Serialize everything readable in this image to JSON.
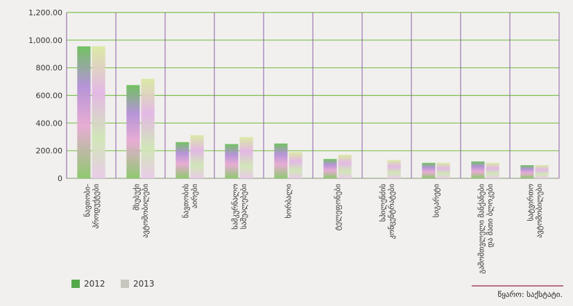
{
  "chart_data": {
    "type": "bar",
    "title": "",
    "xlabel": "",
    "ylabel": "",
    "ylim": [
      0,
      1200
    ],
    "y_ticks": [
      "0",
      "200.00",
      "400.00",
      "600.00",
      "800.00",
      "1,000.00",
      "1,200.00"
    ],
    "y_tick_values": [
      0,
      200,
      400,
      600,
      800,
      1000,
      1200
    ],
    "grid": true,
    "legend_position": "bottom-left",
    "categories": [
      "ნავთობი- პროდუქტები",
      "მსუბუქი ავტომობილები",
      "ნავთობის აირები",
      "სამკურნალო საშუალებები",
      "ხორბალი",
      "ტელეფონები",
      "სპილენძის კონცენტრატები",
      "სიგარეტი",
      "გამომთვლელი მანქანები და მათი ბლოკები",
      "სატვირთო ავტომობილები"
    ],
    "series": [
      {
        "name": "2012",
        "values": [
          955,
          675,
          262,
          248,
          252,
          140,
          0,
          112,
          122,
          95
        ]
      },
      {
        "name": "2013",
        "values": [
          955,
          720,
          312,
          298,
          190,
          170,
          132,
          112,
          112,
          95
        ]
      }
    ]
  },
  "legend": {
    "label_2012": "2012",
    "label_2013": "2013"
  },
  "source": "წყარო: საქსტატი.",
  "colors": {
    "grid_green": "#7cc04a",
    "divider_purple": "#8a5ba8",
    "source_line": "#a8405a",
    "legend_2012": "#55a84a",
    "legend_2013": "#c6c6bc"
  }
}
